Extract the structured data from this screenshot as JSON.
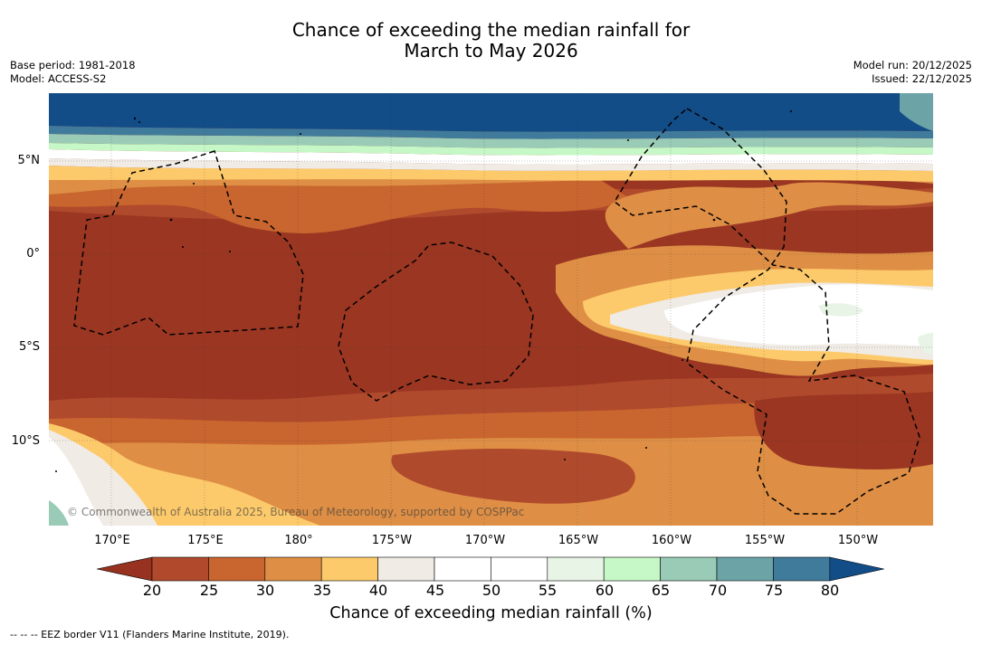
{
  "header": {
    "title_line1": "Chance of exceeding the median rainfall for",
    "title_line2": "March to May 2026",
    "base_period": "Base period: 1981-2018",
    "model": "Model: ACCESS-S2",
    "model_run": "Model run: 20/12/2025",
    "issued": "Issued: 22/12/2025"
  },
  "map": {
    "lat_labels": [
      "5°N",
      "0°",
      "5°S",
      "10°S"
    ],
    "lon_labels": [
      "170°E",
      "175°E",
      "180°",
      "175°W",
      "170°W",
      "165°W",
      "160°W",
      "155°W",
      "150°W"
    ],
    "copyright": "© Commonwealth of Australia 2025, Bureau of Meteorology, supported by COSPPac",
    "background_color": "#9a3622"
  },
  "colorbar": {
    "ticks": [
      "20",
      "25",
      "30",
      "35",
      "40",
      "45",
      "50",
      "55",
      "60",
      "65",
      "70",
      "75",
      "80"
    ],
    "colors": [
      "#96321f",
      "#b14a2c",
      "#c9652f",
      "#de8f45",
      "#fdca6b",
      "#f0ebe5",
      "#ffffff",
      "#ffffff",
      "#e8f4e6",
      "#c6f7c6",
      "#99cbb6",
      "#6ba3a7",
      "#417b9b",
      "#124d88"
    ],
    "label": "Chance of exceeding median rainfall (%)"
  },
  "footnote": "--  --  -- EEZ border V11 (Flanders Marine Institute, 2019)."
}
